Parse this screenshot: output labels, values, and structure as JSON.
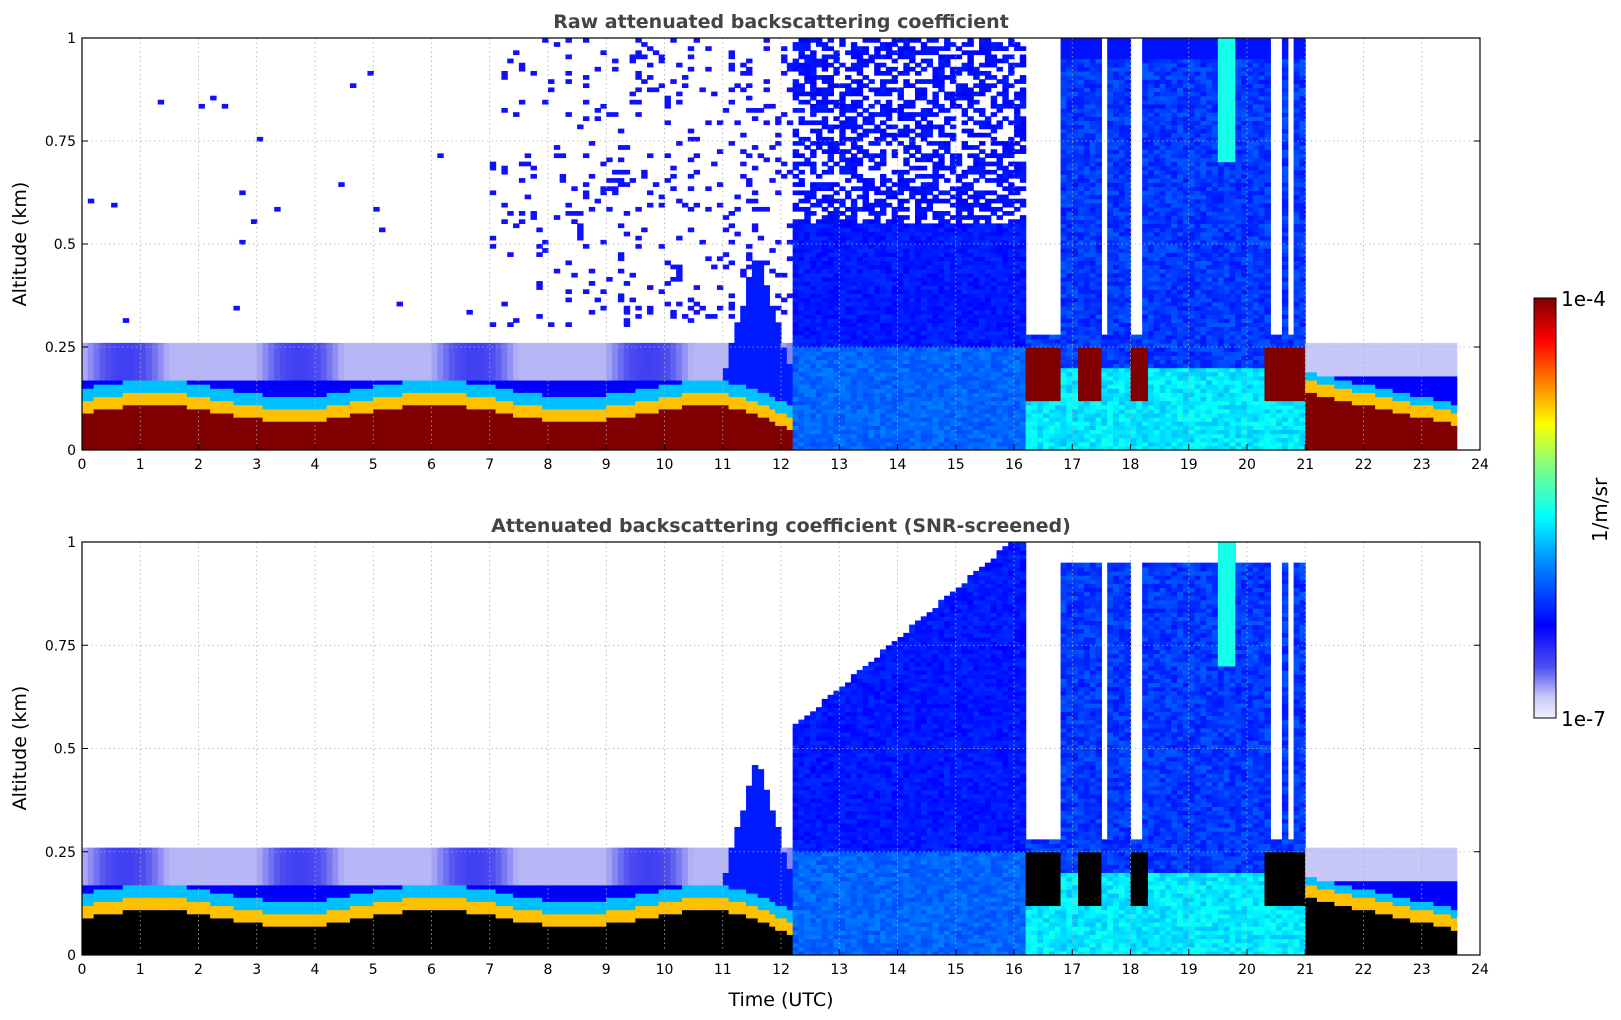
{
  "chart_data": [
    {
      "type": "heatmap",
      "title": "Raw attenuated backscattering coefficient",
      "xlabel": "",
      "ylabel": "Altitude (km)",
      "xlim": [
        0,
        24
      ],
      "ylim": [
        0,
        1
      ],
      "xticks": [
        "0",
        "1",
        "2",
        "3",
        "4",
        "5",
        "6",
        "7",
        "8",
        "9",
        "10",
        "11",
        "12",
        "13",
        "14",
        "15",
        "16",
        "17",
        "18",
        "19",
        "20",
        "21",
        "22",
        "23",
        "24"
      ],
      "yticks": [
        "0",
        "0.25",
        "0.5",
        "0.75",
        "1"
      ],
      "grid": true,
      "variant": "raw",
      "data_extent_hours": [
        0,
        23.6
      ]
    },
    {
      "type": "heatmap",
      "title": "Attenuated backscattering coefficient (SNR-screened)",
      "xlabel": "Time (UTC)",
      "ylabel": "Altitude (km)",
      "xlim": [
        0,
        24
      ],
      "ylim": [
        0,
        1
      ],
      "xticks": [
        "0",
        "1",
        "2",
        "3",
        "4",
        "5",
        "6",
        "7",
        "8",
        "9",
        "10",
        "11",
        "12",
        "13",
        "14",
        "15",
        "16",
        "17",
        "18",
        "19",
        "20",
        "21",
        "22",
        "23",
        "24"
      ],
      "yticks": [
        "0",
        "0.25",
        "0.5",
        "0.75",
        "1"
      ],
      "grid": true,
      "variant": "screened",
      "data_extent_hours": [
        0,
        23.6
      ]
    }
  ],
  "colorbar": {
    "label": "1/m/sr",
    "max_label": "1e-4",
    "min_label": "1e-7",
    "scale": "log",
    "colormap": "jet with light-lavender low end",
    "saturated_color_raw": "#800000",
    "saturated_color_screened": "#000000"
  }
}
